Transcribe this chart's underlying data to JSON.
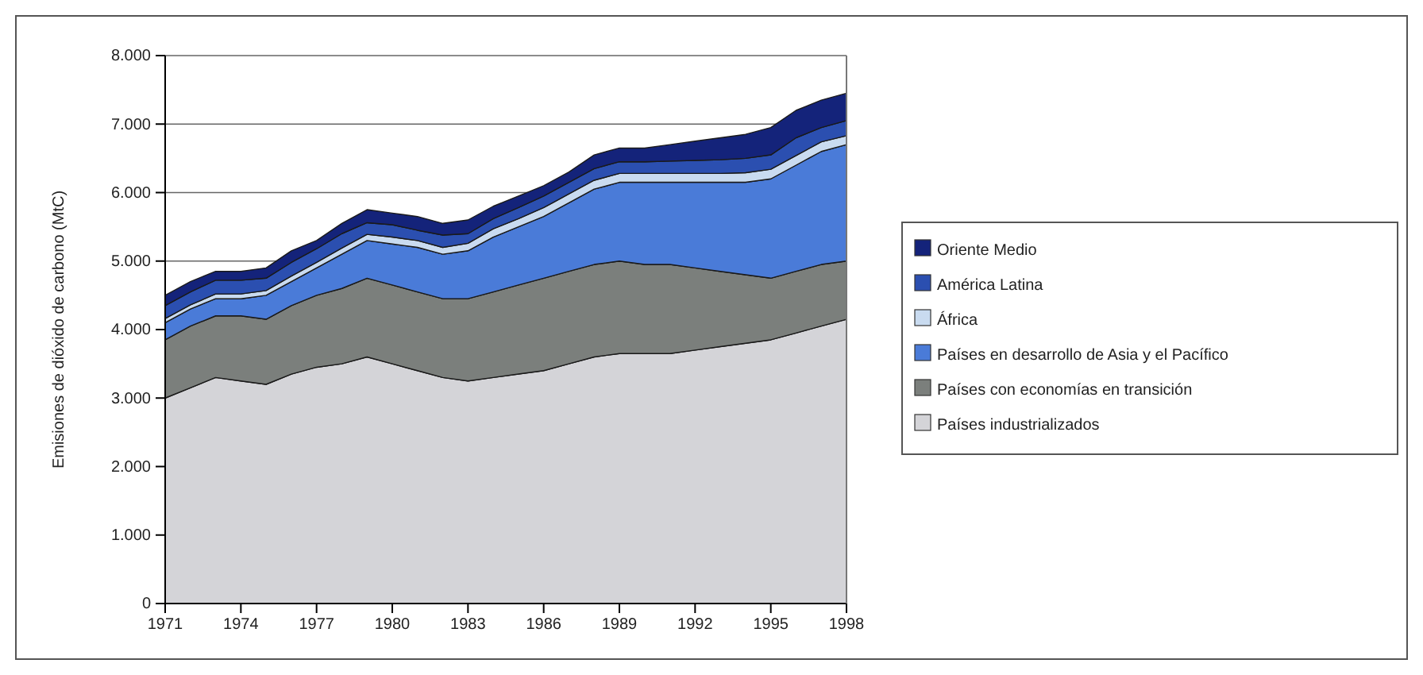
{
  "chart_data": {
    "type": "area",
    "stacked": true,
    "ylabel": "Emisiones de dióxido de carbono (MtC)",
    "x": [
      1971,
      1972,
      1973,
      1974,
      1975,
      1976,
      1977,
      1978,
      1979,
      1980,
      1981,
      1982,
      1983,
      1984,
      1985,
      1986,
      1987,
      1988,
      1989,
      1990,
      1991,
      1992,
      1993,
      1994,
      1995,
      1996,
      1997,
      1998
    ],
    "xlim": [
      1971,
      1998
    ],
    "xticks": [
      1971,
      1974,
      1977,
      1980,
      1983,
      1986,
      1989,
      1992,
      1995,
      1998
    ],
    "ylim": [
      0,
      8000
    ],
    "yticks": [
      {
        "value": 0,
        "label": "0"
      },
      {
        "value": 1000,
        "label": "1.000"
      },
      {
        "value": 2000,
        "label": "2.000"
      },
      {
        "value": 3000,
        "label": "3.000"
      },
      {
        "value": 4000,
        "label": "4.000"
      },
      {
        "value": 5000,
        "label": "5.000"
      },
      {
        "value": 6000,
        "label": "6.000"
      },
      {
        "value": 7000,
        "label": "7.000"
      },
      {
        "value": 8000,
        "label": "8.000"
      }
    ],
    "grid": "y",
    "legend": "right",
    "series": [
      {
        "name": "Países industrializados",
        "color": "#d4d4d8",
        "values": [
          3000,
          3150,
          3300,
          3250,
          3200,
          3350,
          3450,
          3500,
          3600,
          3500,
          3400,
          3300,
          3250,
          3300,
          3350,
          3400,
          3500,
          3600,
          3650,
          3650,
          3650,
          3700,
          3750,
          3800,
          3850,
          3950,
          4050,
          4150
        ]
      },
      {
        "name": "Países con economías en transición",
        "color": "#7b7f7c",
        "values": [
          850,
          900,
          900,
          950,
          950,
          1000,
          1050,
          1100,
          1150,
          1150,
          1150,
          1150,
          1200,
          1250,
          1300,
          1350,
          1350,
          1350,
          1350,
          1300,
          1300,
          1200,
          1100,
          1000,
          900,
          900,
          900,
          850
        ]
      },
      {
        "name": "Países en desarrollo de Asia y el Pacífico",
        "color": "#4a7bd8",
        "values": [
          250,
          250,
          250,
          250,
          350,
          350,
          400,
          500,
          550,
          600,
          650,
          650,
          700,
          800,
          850,
          900,
          1000,
          1100,
          1150,
          1200,
          1200,
          1250,
          1300,
          1350,
          1450,
          1550,
          1650,
          1700
        ]
      },
      {
        "name": "África",
        "color": "#c9dbf0",
        "values": [
          60,
          60,
          70,
          70,
          70,
          80,
          80,
          90,
          90,
          100,
          100,
          100,
          110,
          120,
          120,
          130,
          130,
          130,
          130,
          130,
          130,
          130,
          130,
          140,
          140,
          140,
          140,
          130
        ]
      },
      {
        "name": "América Latina",
        "color": "#2b4fb0",
        "values": [
          190,
          190,
          200,
          200,
          180,
          200,
          200,
          210,
          170,
          180,
          150,
          180,
          140,
          150,
          160,
          170,
          170,
          170,
          170,
          170,
          180,
          190,
          200,
          210,
          210,
          260,
          210,
          220
        ]
      },
      {
        "name": "Oriente Medio",
        "color": "#14237a",
        "values": [
          150,
          150,
          130,
          130,
          150,
          170,
          120,
          150,
          190,
          170,
          200,
          170,
          200,
          180,
          170,
          150,
          150,
          200,
          200,
          200,
          240,
          280,
          320,
          350,
          400,
          400,
          400,
          400
        ]
      }
    ]
  }
}
